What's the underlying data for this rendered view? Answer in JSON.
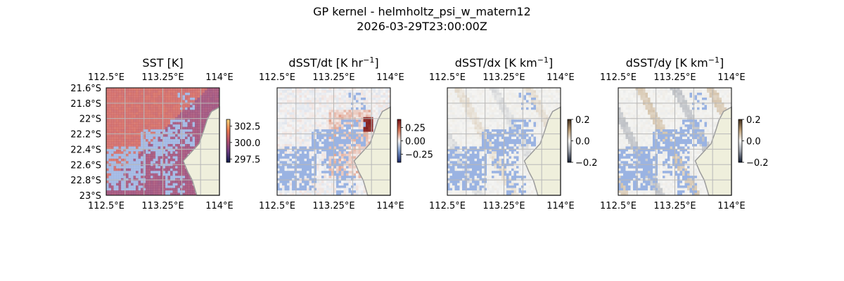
{
  "figure": {
    "title_line1": "GP kernel - helmholtz_psi_w_matern12",
    "title_line2": "2026-03-29T23:00:00Z"
  },
  "colors": {
    "land": "#efefdc",
    "coast": "#9a9a9a",
    "mask": "#9ab3e2",
    "grid": "#b8b8b8"
  },
  "chart_data": [
    {
      "type": "heatmap",
      "title": "SST [K]",
      "title_html": "SST [K]",
      "colormap": "thermal",
      "x_ticks": [
        "112.5°E",
        "113.25°E",
        "114°E"
      ],
      "y_ticks": [
        "21.6°S",
        "21.8°S",
        "22°S",
        "22.2°S",
        "22.4°S",
        "22.6°S",
        "22.8°S",
        "23°S"
      ],
      "show_y_ticks": true,
      "xlim": [
        112.5,
        114.0
      ],
      "ylim": [
        -23.0,
        -21.6
      ],
      "colorbar": {
        "ticks": [
          "302.5",
          "300.0",
          "297.5"
        ],
        "min": 297.0,
        "max": 303.5
      }
    },
    {
      "type": "heatmap",
      "title": "dSST/dt [K hr⁻¹]",
      "title_html": "dSST/dt [K hr<tspan baseline-shift='super' font-size='11'>−1</tspan>]",
      "colormap": "diverging",
      "x_ticks": [
        "112.5°E",
        "113.25°E",
        "114°E"
      ],
      "show_y_ticks": false,
      "xlim": [
        112.5,
        114.0
      ],
      "ylim": [
        -23.0,
        -21.6
      ],
      "colorbar": {
        "ticks": [
          "0.25",
          "0.00",
          "−0.25"
        ],
        "min": -0.4,
        "max": 0.4
      }
    },
    {
      "type": "heatmap",
      "title": "dSST/dx [K km⁻¹]",
      "title_html": "dSST/dx [K km<tspan baseline-shift='super' font-size='11'>−1</tspan>]",
      "colormap": "diverging-grey",
      "x_ticks": [
        "112.5°E",
        "113.25°E",
        "114°E"
      ],
      "show_y_ticks": false,
      "xlim": [
        112.5,
        114.0
      ],
      "ylim": [
        -23.0,
        -21.6
      ],
      "colorbar": {
        "ticks": [
          "0.2",
          "0.0",
          "−0.2"
        ],
        "min": -0.2,
        "max": 0.2
      }
    },
    {
      "type": "heatmap",
      "title": "dSST/dy [K km⁻¹]",
      "title_html": "dSST/dy [K km<tspan baseline-shift='super' font-size='11'>−1</tspan>]",
      "colormap": "diverging-grey",
      "x_ticks": [
        "112.5°E",
        "113.25°E",
        "114°E"
      ],
      "show_y_ticks": false,
      "xlim": [
        112.5,
        114.0
      ],
      "ylim": [
        -23.0,
        -21.6
      ],
      "colorbar": {
        "ticks": [
          "0.2",
          "0.0",
          "−0.2"
        ],
        "min": -0.2,
        "max": 0.2
      }
    }
  ]
}
